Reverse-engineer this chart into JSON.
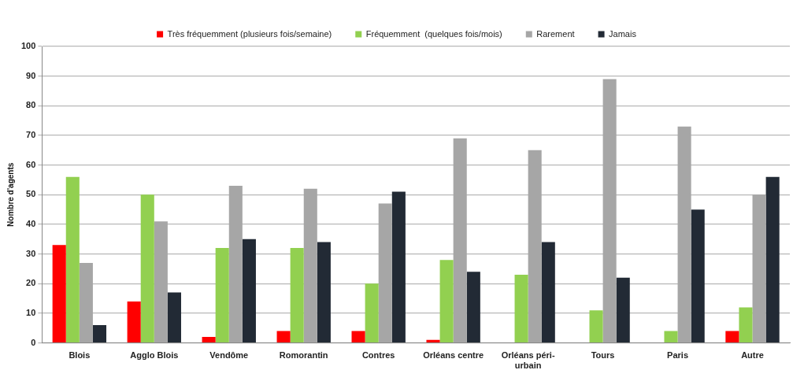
{
  "chart_data": {
    "type": "bar",
    "ylabel": "Nombre d'agents",
    "categories": [
      "Blois",
      "Agglo Blois",
      "Vendôme",
      "Romorantin",
      "Contres",
      "Orléans centre",
      "Orléans péri-urbain",
      "Tours",
      "Paris",
      "Autre"
    ],
    "series": [
      {
        "name": "Très fréquemment (plusieurs fois/semaine)",
        "color": "#ff0000",
        "values": [
          33,
          14,
          2,
          4,
          4,
          1,
          0,
          0,
          0,
          4
        ]
      },
      {
        "name": "Fréquemment  (quelques fois/mois)",
        "color": "#92d050",
        "values": [
          56,
          50,
          32,
          32,
          20,
          28,
          23,
          11,
          4,
          12
        ]
      },
      {
        "name": "Rarement",
        "color": "#a6a6a6",
        "values": [
          27,
          41,
          53,
          52,
          47,
          69,
          65,
          89,
          73,
          50
        ]
      },
      {
        "name": "Jamais",
        "color": "#222a35",
        "values": [
          6,
          17,
          35,
          34,
          51,
          24,
          34,
          22,
          45,
          56
        ]
      }
    ],
    "ylim": [
      0,
      100
    ],
    "yticks": [
      0,
      10,
      20,
      30,
      40,
      50,
      60,
      70,
      80,
      90,
      100
    ],
    "grid": "y",
    "legend": "top"
  }
}
